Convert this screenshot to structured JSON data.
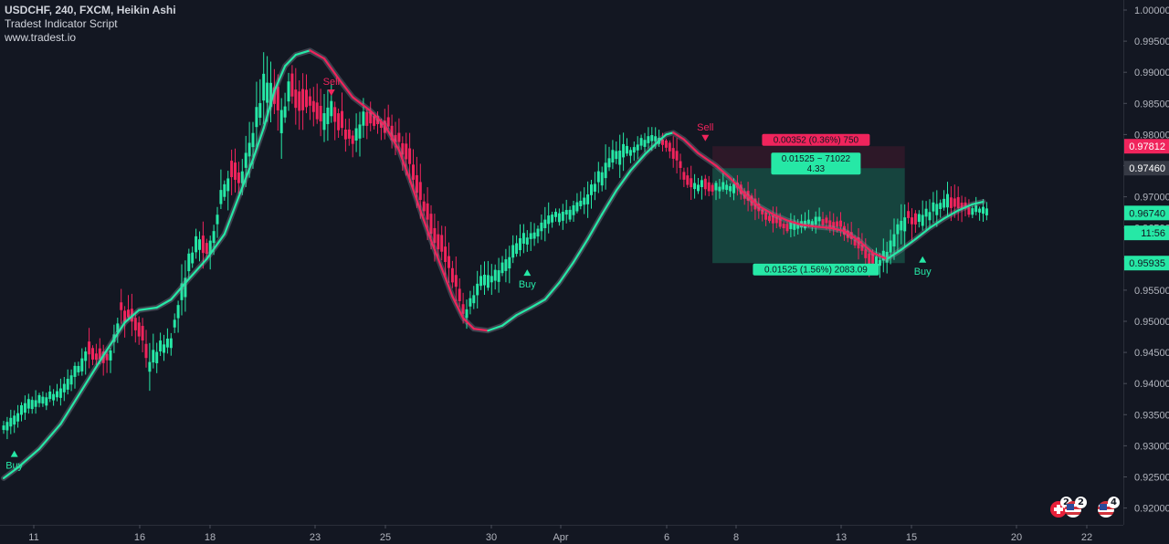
{
  "legend": {
    "symbol": "USDCHF, 240, FXCM, Heikin Ashi",
    "indicator": "Tradest Indicator Script",
    "website": "www.tradest.io"
  },
  "colors": {
    "background": "#131722",
    "up": "#26e8a6",
    "down": "#f0245c",
    "text": "#d1d4dc",
    "muted": "#b2b5be",
    "grid_line": "#2a2e39"
  },
  "chart_data": {
    "type": "candlestick",
    "chart_style": "Heikin Ashi",
    "ylim": [
      0.9175,
      1.0015
    ],
    "y_ticks": [
      "1.00000",
      "0.99500",
      "0.99000",
      "0.98500",
      "0.98000",
      "0.97500",
      "0.97000",
      "0.96500",
      "0.96000",
      "0.95500",
      "0.95000",
      "0.94500",
      "0.94000",
      "0.93500",
      "0.93000",
      "0.92500",
      "0.92000"
    ],
    "x_ticks": [
      "11",
      "16",
      "18",
      "23",
      "25",
      "30",
      "Apr",
      "6",
      "8",
      "13",
      "15",
      "20",
      "22"
    ],
    "price_labels": [
      {
        "text": "0.97812",
        "value": 0.97812,
        "color": "#f0245c",
        "text_color": "#ffffff"
      },
      {
        "text": "0.97460",
        "value": 0.9746,
        "color": "#363a45",
        "text_color": "#ffffff"
      },
      {
        "text": "0.96740",
        "value": 0.9674,
        "color": "#26e8a6",
        "text_color": "#131722"
      },
      {
        "text": "11:56",
        "value": 0.9642,
        "color": "#26e8a6",
        "text_color": "#131722"
      },
      {
        "text": "0.95935",
        "value": 0.95935,
        "color": "#26e8a6",
        "text_color": "#131722"
      }
    ],
    "signals": [
      {
        "label": "Buy",
        "type": "buy",
        "price": 0.9288
      },
      {
        "label": "Sell",
        "type": "sell",
        "price": 0.9868
      },
      {
        "label": "Buy",
        "type": "buy",
        "price": 0.9579
      },
      {
        "label": "Sell",
        "type": "sell",
        "price": 0.9795
      },
      {
        "label": "Buy",
        "type": "buy",
        "price": 0.96
      }
    ],
    "position": {
      "entry": 0.9746,
      "stop": 0.97812,
      "target": 0.95935,
      "stop_label": "0.00352 (0.36%) 750",
      "target_label": "0.01525 (1.56%) 2083.09",
      "center_line1": "0.01525 ~ 71022",
      "center_line2": "4.33"
    },
    "moving_average": [
      [
        0,
        0.9248
      ],
      [
        4,
        0.9265
      ],
      [
        10,
        0.9295
      ],
      [
        16,
        0.9335
      ],
      [
        22,
        0.939
      ],
      [
        28,
        0.9445
      ],
      [
        34,
        0.9498
      ],
      [
        38,
        0.9518
      ],
      [
        43,
        0.9522
      ],
      [
        47,
        0.9535
      ],
      [
        52,
        0.9568
      ],
      [
        57,
        0.96
      ],
      [
        62,
        0.964
      ],
      [
        66,
        0.97
      ],
      [
        70,
        0.976
      ],
      [
        73,
        0.981
      ],
      [
        76,
        0.987
      ],
      [
        79,
        0.991
      ],
      [
        82,
        0.9928
      ],
      [
        86,
        0.9935
      ],
      [
        90,
        0.9922
      ],
      [
        94,
        0.989
      ],
      [
        98,
        0.986
      ],
      [
        103,
        0.9838
      ],
      [
        107,
        0.9815
      ],
      [
        111,
        0.9775
      ],
      [
        114,
        0.9728
      ],
      [
        117,
        0.9678
      ],
      [
        120,
        0.963
      ],
      [
        123,
        0.9585
      ],
      [
        126,
        0.954
      ],
      [
        129,
        0.9505
      ],
      [
        132,
        0.9488
      ],
      [
        136,
        0.9485
      ],
      [
        140,
        0.9493
      ],
      [
        144,
        0.951
      ],
      [
        148,
        0.9522
      ],
      [
        152,
        0.9535
      ],
      [
        156,
        0.9562
      ],
      [
        160,
        0.9595
      ],
      [
        164,
        0.9632
      ],
      [
        168,
        0.9672
      ],
      [
        172,
        0.971
      ],
      [
        176,
        0.9742
      ],
      [
        180,
        0.9768
      ],
      [
        184,
        0.979
      ],
      [
        186,
        0.98
      ],
      [
        188,
        0.9803
      ],
      [
        191,
        0.9792
      ],
      [
        195,
        0.977
      ],
      [
        200,
        0.975
      ],
      [
        204,
        0.973
      ],
      [
        208,
        0.9705
      ],
      [
        212,
        0.9685
      ],
      [
        216,
        0.9672
      ],
      [
        220,
        0.9662
      ],
      [
        224,
        0.9655
      ],
      [
        228,
        0.9652
      ],
      [
        232,
        0.965
      ],
      [
        236,
        0.9645
      ],
      [
        240,
        0.963
      ],
      [
        244,
        0.961
      ],
      [
        248,
        0.96
      ],
      [
        252,
        0.9615
      ],
      [
        256,
        0.9632
      ],
      [
        260,
        0.965
      ],
      [
        264,
        0.9665
      ],
      [
        268,
        0.9678
      ],
      [
        272,
        0.9688
      ],
      [
        275,
        0.9692
      ]
    ],
    "candle_path": [
      [
        0,
        0.9325,
        0.0016
      ],
      [
        4,
        0.935,
        0.0016
      ],
      [
        8,
        0.9368,
        0.0016
      ],
      [
        12,
        0.9375,
        0.0014
      ],
      [
        16,
        0.9385,
        0.0016
      ],
      [
        20,
        0.9415,
        0.002
      ],
      [
        24,
        0.9452,
        0.0022
      ],
      [
        27,
        0.9448,
        0.002
      ],
      [
        30,
        0.944,
        0.002
      ],
      [
        33,
        0.952,
        0.0026
      ],
      [
        36,
        0.9505,
        0.0022
      ],
      [
        39,
        0.948,
        0.0025
      ],
      [
        41,
        0.943,
        0.0028
      ],
      [
        44,
        0.9455,
        0.002
      ],
      [
        47,
        0.947,
        0.0018
      ],
      [
        50,
        0.954,
        0.003
      ],
      [
        53,
        0.961,
        0.0035
      ],
      [
        56,
        0.9625,
        0.0028
      ],
      [
        58,
        0.9612,
        0.0024
      ],
      [
        61,
        0.97,
        0.003
      ],
      [
        64,
        0.974,
        0.003
      ],
      [
        67,
        0.9728,
        0.0025
      ],
      [
        70,
        0.98,
        0.0035
      ],
      [
        73,
        0.9868,
        0.0045
      ],
      [
        76,
        0.987,
        0.004
      ],
      [
        78,
        0.983,
        0.004
      ],
      [
        81,
        0.9875,
        0.0038
      ],
      [
        84,
        0.9855,
        0.0035
      ],
      [
        87,
        0.985,
        0.003
      ],
      [
        90,
        0.9828,
        0.003
      ],
      [
        93,
        0.9838,
        0.0028
      ],
      [
        96,
        0.9808,
        0.0028
      ],
      [
        99,
        0.9795,
        0.0028
      ],
      [
        102,
        0.983,
        0.0025
      ],
      [
        105,
        0.9825,
        0.002
      ],
      [
        108,
        0.9815,
        0.0022
      ],
      [
        111,
        0.979,
        0.0025
      ],
      [
        114,
        0.976,
        0.0028
      ],
      [
        117,
        0.971,
        0.0032
      ],
      [
        120,
        0.965,
        0.0035
      ],
      [
        123,
        0.962,
        0.0032
      ],
      [
        126,
        0.958,
        0.003
      ],
      [
        128,
        0.9545,
        0.003
      ],
      [
        130,
        0.951,
        0.0028
      ],
      [
        132,
        0.954,
        0.0025
      ],
      [
        134,
        0.956,
        0.0022
      ],
      [
        137,
        0.957,
        0.002
      ],
      [
        140,
        0.958,
        0.0022
      ],
      [
        143,
        0.961,
        0.0022
      ],
      [
        146,
        0.9628,
        0.002
      ],
      [
        149,
        0.964,
        0.002
      ],
      [
        152,
        0.9655,
        0.002
      ],
      [
        155,
        0.9668,
        0.0018
      ],
      [
        158,
        0.9672,
        0.0016
      ],
      [
        161,
        0.9682,
        0.0016
      ],
      [
        164,
        0.97,
        0.002
      ],
      [
        167,
        0.9725,
        0.0025
      ],
      [
        170,
        0.9755,
        0.0028
      ],
      [
        173,
        0.977,
        0.0025
      ],
      [
        176,
        0.9775,
        0.0018
      ],
      [
        179,
        0.9785,
        0.0015
      ],
      [
        182,
        0.979,
        0.0015
      ],
      [
        185,
        0.9788,
        0.0012
      ],
      [
        188,
        0.9775,
        0.0018
      ],
      [
        191,
        0.9735,
        0.0025
      ],
      [
        194,
        0.9718,
        0.002
      ],
      [
        197,
        0.972,
        0.0018
      ],
      [
        200,
        0.9715,
        0.0015
      ],
      [
        203,
        0.9718,
        0.0014
      ],
      [
        206,
        0.9715,
        0.0015
      ],
      [
        209,
        0.97,
        0.0018
      ],
      [
        212,
        0.968,
        0.0018
      ],
      [
        215,
        0.9665,
        0.0015
      ],
      [
        218,
        0.966,
        0.0015
      ],
      [
        221,
        0.965,
        0.0014
      ],
      [
        224,
        0.9655,
        0.0014
      ],
      [
        227,
        0.966,
        0.0015
      ],
      [
        230,
        0.9662,
        0.0015
      ],
      [
        233,
        0.9658,
        0.0014
      ],
      [
        236,
        0.965,
        0.0015
      ],
      [
        239,
        0.963,
        0.0018
      ],
      [
        242,
        0.961,
        0.002
      ],
      [
        245,
        0.9595,
        0.0018
      ],
      [
        248,
        0.9605,
        0.002
      ],
      [
        251,
        0.965,
        0.0028
      ],
      [
        254,
        0.9668,
        0.0025
      ],
      [
        257,
        0.966,
        0.0022
      ],
      [
        260,
        0.9675,
        0.0022
      ],
      [
        263,
        0.9685,
        0.0022
      ],
      [
        266,
        0.969,
        0.0022
      ],
      [
        269,
        0.9685,
        0.002
      ],
      [
        272,
        0.968,
        0.0015
      ],
      [
        275,
        0.9678,
        0.0012
      ]
    ]
  }
}
